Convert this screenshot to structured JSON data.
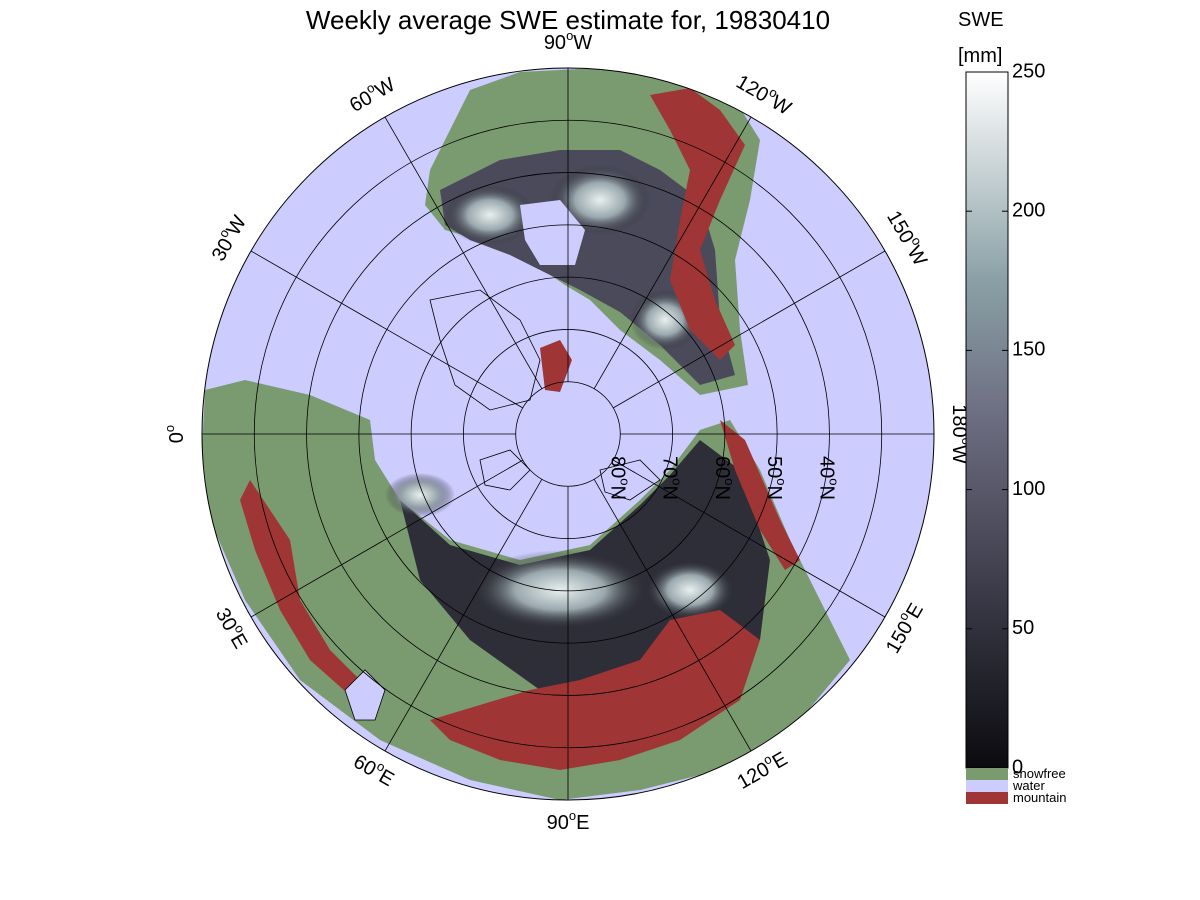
{
  "title": "Weekly average SWE estimate for, 19830410",
  "colorbar": {
    "title_line1": "SWE",
    "title_line2": "[mm]",
    "ticks": [
      "250",
      "200",
      "150",
      "100",
      "50",
      "0"
    ],
    "range": [
      0,
      250
    ],
    "colors": {
      "low": "#0b0b0f",
      "mid_low": "#585868",
      "mid": "#7f8f98",
      "high": "#ffffff"
    }
  },
  "legend": [
    {
      "label": "snowfree",
      "color": "#7a9a70"
    },
    {
      "label": "water",
      "color": "#ccccff"
    },
    {
      "label": "mountain",
      "color": "#a03535"
    }
  ],
  "map": {
    "projection": "north-polar",
    "colors": {
      "ocean": "#ccccff",
      "land": "#7a9a70",
      "mountain": "#a03535",
      "coast": "#000000"
    },
    "longitude_labels": [
      {
        "text": "90",
        "suffix": "W"
      },
      {
        "text": "120",
        "suffix": "W"
      },
      {
        "text": "150",
        "suffix": "W"
      },
      {
        "text": "180",
        "suffix": "W"
      },
      {
        "text": "150",
        "suffix": "E"
      },
      {
        "text": "120",
        "suffix": "E"
      },
      {
        "text": "90",
        "suffix": "E"
      },
      {
        "text": "60",
        "suffix": "E"
      },
      {
        "text": "30",
        "suffix": "E"
      },
      {
        "text": "0",
        "suffix": ""
      },
      {
        "text": "30",
        "suffix": "W"
      },
      {
        "text": "60",
        "suffix": "W"
      }
    ],
    "latitude_labels": [
      "80",
      "70",
      "60",
      "50",
      "40"
    ],
    "latitude_suffix": "N"
  }
}
